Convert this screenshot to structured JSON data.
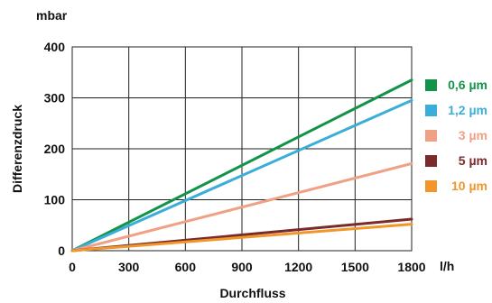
{
  "chart_data": {
    "type": "line",
    "xlabel": "Durchfluss",
    "ylabel": "Differenzdruck",
    "x_unit": "l/h",
    "y_unit": "mbar",
    "xlim": [
      0,
      1800
    ],
    "ylim": [
      0,
      400
    ],
    "x_ticks": [
      "0",
      "300",
      "600",
      "900",
      "1200",
      "1500",
      "1800"
    ],
    "y_ticks": [
      "0",
      "100",
      "200",
      "300",
      "400"
    ],
    "grid": true,
    "legend_position": "right",
    "series": [
      {
        "name": "0,6 µm",
        "color": "#13934a",
        "x": [
          0,
          1800
        ],
        "y": [
          0,
          335
        ]
      },
      {
        "name": "1,2 µm",
        "color": "#3aaed8",
        "x": [
          0,
          1800
        ],
        "y": [
          0,
          295
        ]
      },
      {
        "name": "3 µm",
        "color": "#f0a085",
        "x": [
          0,
          1800
        ],
        "y": [
          0,
          171
        ]
      },
      {
        "name": "5 µm",
        "color": "#7a2a2a",
        "x": [
          0,
          1800
        ],
        "y": [
          0,
          62
        ]
      },
      {
        "name": "10 µm",
        "color": "#f0962a",
        "x": [
          0,
          1800
        ],
        "y": [
          0,
          52
        ]
      }
    ]
  }
}
